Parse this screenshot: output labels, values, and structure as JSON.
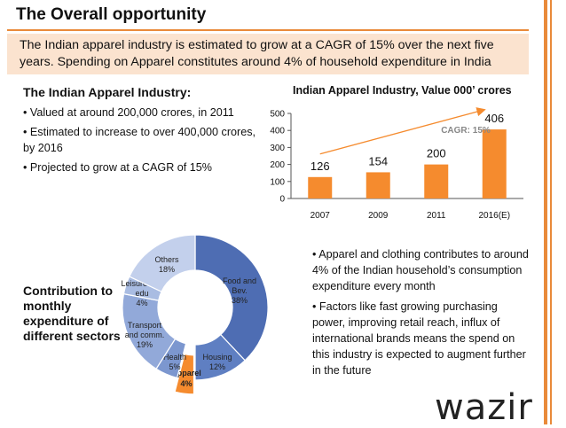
{
  "slide": {
    "title": "The Overall opportunity",
    "banner": "The Indian apparel industry is estimated to grow at a CAGR of 15% over the next five years. Spending on Apparel constitutes around 4% of household expenditure in India",
    "accent_color": "#e98a3a",
    "banner_color": "#fbe3cf"
  },
  "left": {
    "heading": "The Indian Apparel Industry:",
    "bullets": [
      "• Valued at around 200,000 crores, in 2011",
      "• Estimated to increase to over 400,000 crores, by 2016",
      "• Projected to grow at a CAGR of 15%"
    ],
    "contribution_label": "Contribution to monthly expenditure of different sectors"
  },
  "right": {
    "bullets": [
      "• Apparel and clothing contributes to around 4% of the Indian household’s consumption expenditure every month",
      "• Factors like fast growing purchasing power, improving retail reach, influx of international brands means the spend on this industry is expected to augment further in the future"
    ]
  },
  "logo": {
    "text": "wazir"
  },
  "chart_data": [
    {
      "type": "bar",
      "title": "Indian Apparel Industry, Value 000’ crores",
      "categories": [
        "2007",
        "2009",
        "2011",
        "2016(E)"
      ],
      "values": [
        126,
        154,
        200,
        406
      ],
      "ylim": [
        0,
        500
      ],
      "yticks": [
        "0",
        "100",
        "200",
        "300",
        "400",
        "500"
      ],
      "annotation": "CAGR: 15%",
      "bar_color": "#f58b2e",
      "grid": false
    },
    {
      "type": "pie",
      "style": "donut",
      "slices": [
        {
          "label": "Food and Bev.",
          "value": 38,
          "display": "38%",
          "color": "#4e6db3"
        },
        {
          "label": "Housing",
          "value": 12,
          "display": "12%",
          "color": "#5f7fc2"
        },
        {
          "label": "Apparel",
          "value": 4,
          "display": "4%",
          "color": "#f58b2e"
        },
        {
          "label": "Health",
          "value": 5,
          "display": "5%",
          "color": "#7c97cf"
        },
        {
          "label": "Transport and comm.",
          "value": 19,
          "display": "19%",
          "color": "#92a9d9"
        },
        {
          "label": "Leisure and edu",
          "value": 4,
          "display": "4%",
          "color": "#a9bce2"
        },
        {
          "label": "Others",
          "value": 18,
          "display": "18%",
          "color": "#c3d0ec"
        }
      ]
    }
  ]
}
